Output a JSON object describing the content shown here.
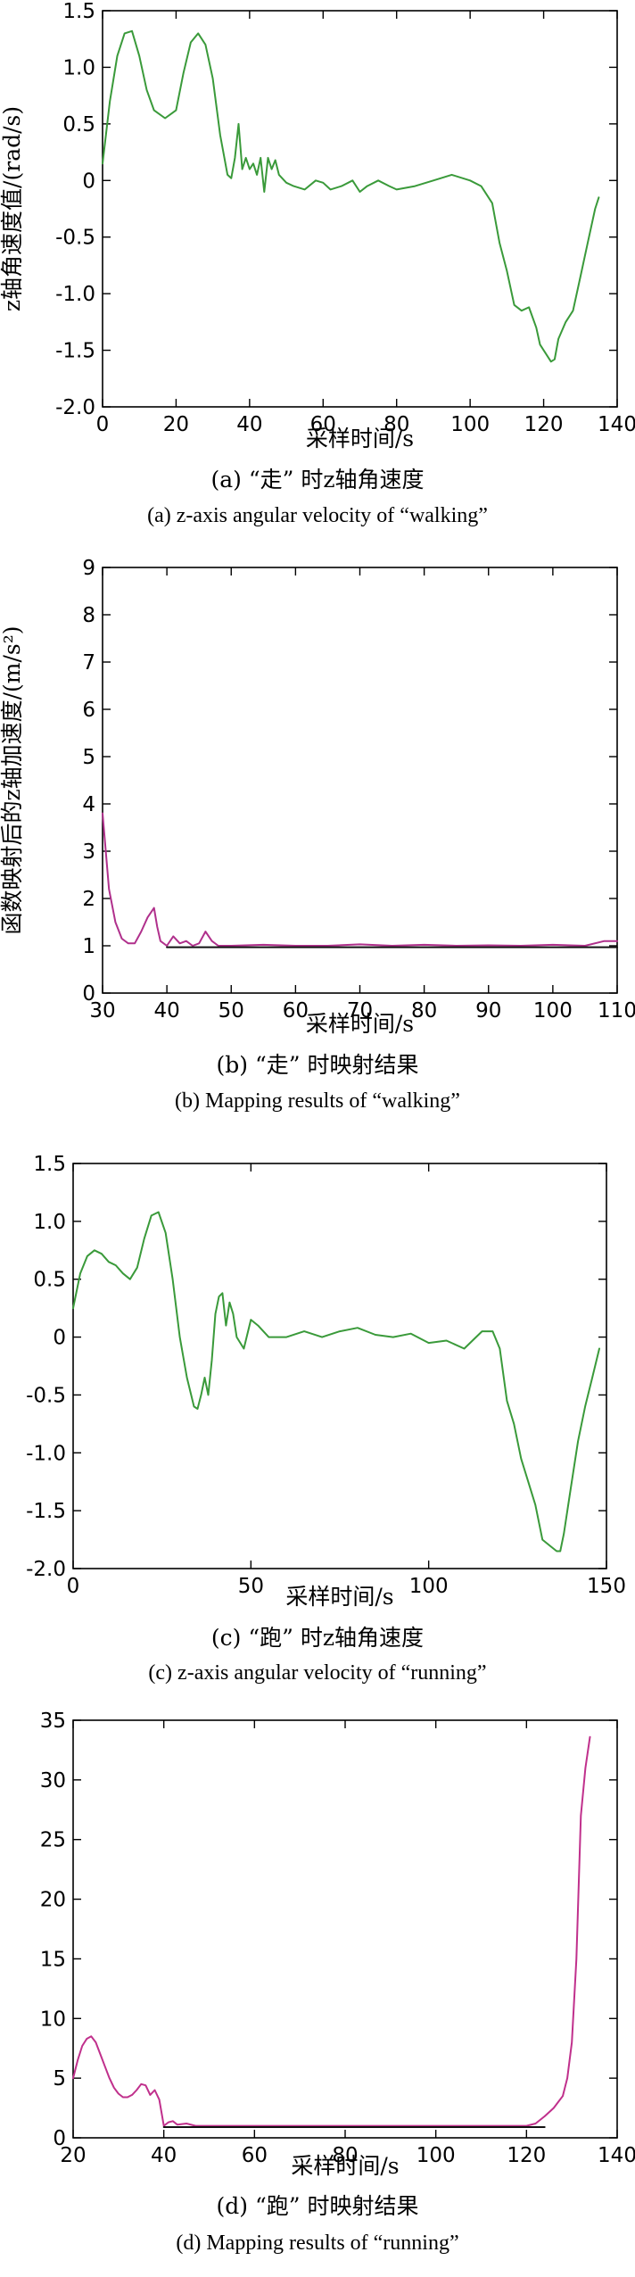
{
  "chart_data": [
    {
      "id": "a",
      "type": "line",
      "caption_zh": "(a) “走” 时z轴角速度",
      "caption_en": "(a) z-axis angular velocity of “walking”",
      "xlabel": "采样时间/s",
      "ylabel": "z轴角速度值/(rad/s)",
      "xlim": [
        0,
        140
      ],
      "ylim": [
        -2.0,
        1.5
      ],
      "xticks": [
        0,
        20,
        40,
        60,
        80,
        100,
        120,
        140
      ],
      "yticks": [
        -2.0,
        -1.5,
        -1.0,
        -0.5,
        0,
        0.5,
        1.0,
        1.5
      ],
      "ytick_labels": [
        "-2.0",
        "-1.5",
        "-1.0",
        "-0.5",
        "0",
        "0.5",
        "1.0",
        "1.5"
      ],
      "grid": false,
      "series": [
        {
          "color": "#3a9a3a",
          "x": [
            0,
            2,
            4,
            6,
            8,
            10,
            12,
            14,
            17,
            20,
            22,
            24,
            26,
            28,
            30,
            32,
            34,
            35,
            36,
            37,
            38,
            39,
            40,
            41,
            42,
            43,
            44,
            45,
            46,
            47,
            48,
            50,
            52,
            55,
            58,
            60,
            62,
            65,
            68,
            70,
            72,
            75,
            78,
            80,
            85,
            90,
            95,
            100,
            103,
            106,
            108,
            110,
            112,
            114,
            116,
            118,
            119,
            120,
            121,
            122,
            123,
            124,
            126,
            128,
            130,
            132,
            134,
            135
          ],
          "y": [
            0.15,
            0.7,
            1.1,
            1.3,
            1.32,
            1.1,
            0.8,
            0.62,
            0.55,
            0.62,
            0.95,
            1.22,
            1.3,
            1.2,
            0.9,
            0.4,
            0.05,
            0.02,
            0.2,
            0.5,
            0.1,
            0.2,
            0.1,
            0.15,
            0.05,
            0.2,
            -0.1,
            0.2,
            0.1,
            0.18,
            0.05,
            -0.02,
            -0.05,
            -0.08,
            0.0,
            -0.02,
            -0.08,
            -0.05,
            0.0,
            -0.1,
            -0.05,
            0.0,
            -0.05,
            -0.08,
            -0.05,
            0.0,
            0.05,
            0.0,
            -0.05,
            -0.2,
            -0.55,
            -0.8,
            -1.1,
            -1.15,
            -1.12,
            -1.3,
            -1.45,
            -1.5,
            -1.55,
            -1.6,
            -1.58,
            -1.4,
            -1.25,
            -1.15,
            -0.85,
            -0.55,
            -0.25,
            -0.15
          ]
        }
      ]
    },
    {
      "id": "b",
      "type": "line",
      "caption_zh": "(b) “走” 时映射结果",
      "caption_en": "(b) Mapping results of “walking”",
      "xlabel": "采样时间/s",
      "ylabel": "函数映射后的z轴加速度/(m/s²)",
      "xlim": [
        30,
        110
      ],
      "ylim": [
        0,
        9
      ],
      "xticks": [
        30,
        40,
        50,
        60,
        70,
        80,
        90,
        100,
        110
      ],
      "yticks": [
        0,
        1,
        2,
        3,
        4,
        5,
        6,
        7,
        8,
        9
      ],
      "ytick_labels": [
        "0",
        "1",
        "2",
        "3",
        "4",
        "5",
        "6",
        "7",
        "8",
        "9"
      ],
      "grid": false,
      "series": [
        {
          "color": "#b0308c",
          "x": [
            30,
            30.5,
            31,
            32,
            33,
            34,
            35,
            36,
            37,
            38,
            38.5,
            39,
            40,
            41,
            42,
            43,
            44,
            45,
            46,
            47,
            48,
            50,
            55,
            60,
            65,
            70,
            75,
            80,
            85,
            90,
            95,
            100,
            105,
            108,
            110
          ],
          "y": [
            3.8,
            3.0,
            2.2,
            1.5,
            1.15,
            1.05,
            1.05,
            1.3,
            1.6,
            1.8,
            1.4,
            1.1,
            1.0,
            1.2,
            1.05,
            1.1,
            1.0,
            1.05,
            1.3,
            1.1,
            1.0,
            1.0,
            1.02,
            1.0,
            1.0,
            1.03,
            1.0,
            1.02,
            1.0,
            1.01,
            1.0,
            1.02,
            1.0,
            1.1,
            1.1
          ]
        },
        {
          "color": "#111111",
          "x": [
            40,
            110
          ],
          "y": [
            0.97,
            0.97
          ]
        }
      ]
    },
    {
      "id": "c",
      "type": "line",
      "caption_zh": "(c) “跑” 时z轴角速度",
      "caption_en": "(c) z-axis angular velocity of “running”",
      "xlabel": "采样时间/s",
      "ylabel": "",
      "xlim": [
        0,
        150
      ],
      "ylim": [
        -2.0,
        1.5
      ],
      "xticks": [
        0,
        50,
        100,
        150
      ],
      "yticks": [
        -2.0,
        -1.5,
        -1.0,
        -0.5,
        0,
        0.5,
        1.0,
        1.5
      ],
      "ytick_labels": [
        "-2.0",
        "-1.5",
        "-1.0",
        "-0.5",
        "0",
        "0.5",
        "1.0",
        "1.5"
      ],
      "grid": false,
      "series": [
        {
          "color": "#3a9a3a",
          "x": [
            0,
            2,
            4,
            6,
            8,
            10,
            12,
            14,
            16,
            18,
            20,
            22,
            24,
            26,
            28,
            30,
            32,
            34,
            35,
            36,
            37,
            38,
            39,
            40,
            41,
            42,
            43,
            44,
            45,
            46,
            48,
            50,
            52,
            55,
            60,
            65,
            70,
            75,
            80,
            85,
            90,
            95,
            100,
            105,
            110,
            115,
            118,
            120,
            122,
            124,
            126,
            128,
            130,
            132,
            134,
            136,
            137,
            138,
            140,
            142,
            144,
            146,
            148
          ],
          "y": [
            0.25,
            0.55,
            0.7,
            0.75,
            0.72,
            0.65,
            0.62,
            0.55,
            0.5,
            0.6,
            0.85,
            1.05,
            1.08,
            0.9,
            0.5,
            0.0,
            -0.35,
            -0.6,
            -0.62,
            -0.5,
            -0.35,
            -0.5,
            -0.2,
            0.2,
            0.35,
            0.38,
            0.1,
            0.3,
            0.2,
            0.0,
            -0.1,
            0.15,
            0.1,
            0.0,
            0.0,
            0.05,
            0.0,
            0.05,
            0.08,
            0.02,
            0.0,
            0.03,
            -0.05,
            -0.03,
            -0.1,
            0.05,
            0.05,
            -0.1,
            -0.55,
            -0.75,
            -1.05,
            -1.25,
            -1.45,
            -1.75,
            -1.8,
            -1.85,
            -1.85,
            -1.7,
            -1.3,
            -0.9,
            -0.6,
            -0.35,
            -0.1
          ]
        }
      ]
    },
    {
      "id": "d",
      "type": "line",
      "caption_zh": "(d) “跑” 时映射结果",
      "caption_en": "(d) Mapping results of “running”",
      "xlabel": "采样时间/s",
      "ylabel": "",
      "xlim": [
        20,
        140
      ],
      "ylim": [
        0,
        35
      ],
      "xticks": [
        20,
        40,
        60,
        80,
        100,
        120,
        140
      ],
      "yticks": [
        0,
        5,
        10,
        15,
        20,
        25,
        30,
        35
      ],
      "ytick_labels": [
        "0",
        "5",
        "10",
        "15",
        "20",
        "25",
        "30",
        "35"
      ],
      "grid": false,
      "series": [
        {
          "color": "#c0308c",
          "x": [
            20,
            21,
            22,
            23,
            24,
            25,
            26,
            27,
            28,
            29,
            30,
            31,
            32,
            33,
            34,
            35,
            36,
            37,
            38,
            39,
            40,
            41,
            42,
            43,
            45,
            47,
            50,
            55,
            60,
            70,
            80,
            90,
            100,
            110,
            120,
            122,
            124,
            126,
            127,
            128,
            129,
            130,
            131,
            132,
            133,
            134
          ],
          "y": [
            5.0,
            6.5,
            7.7,
            8.3,
            8.5,
            8.0,
            7.0,
            6.0,
            5.0,
            4.2,
            3.7,
            3.4,
            3.4,
            3.6,
            4.0,
            4.5,
            4.4,
            3.6,
            4.0,
            3.2,
            1.0,
            1.3,
            1.4,
            1.1,
            1.2,
            1.0,
            1.0,
            1.0,
            1.0,
            1.0,
            1.0,
            1.0,
            1.0,
            1.0,
            1.0,
            1.2,
            1.8,
            2.5,
            3.0,
            3.5,
            5.0,
            8.0,
            15.0,
            27.0,
            31.0,
            33.6
          ]
        },
        {
          "color": "#111111",
          "x": [
            40,
            124
          ],
          "y": [
            0.9,
            0.9
          ]
        }
      ]
    }
  ]
}
